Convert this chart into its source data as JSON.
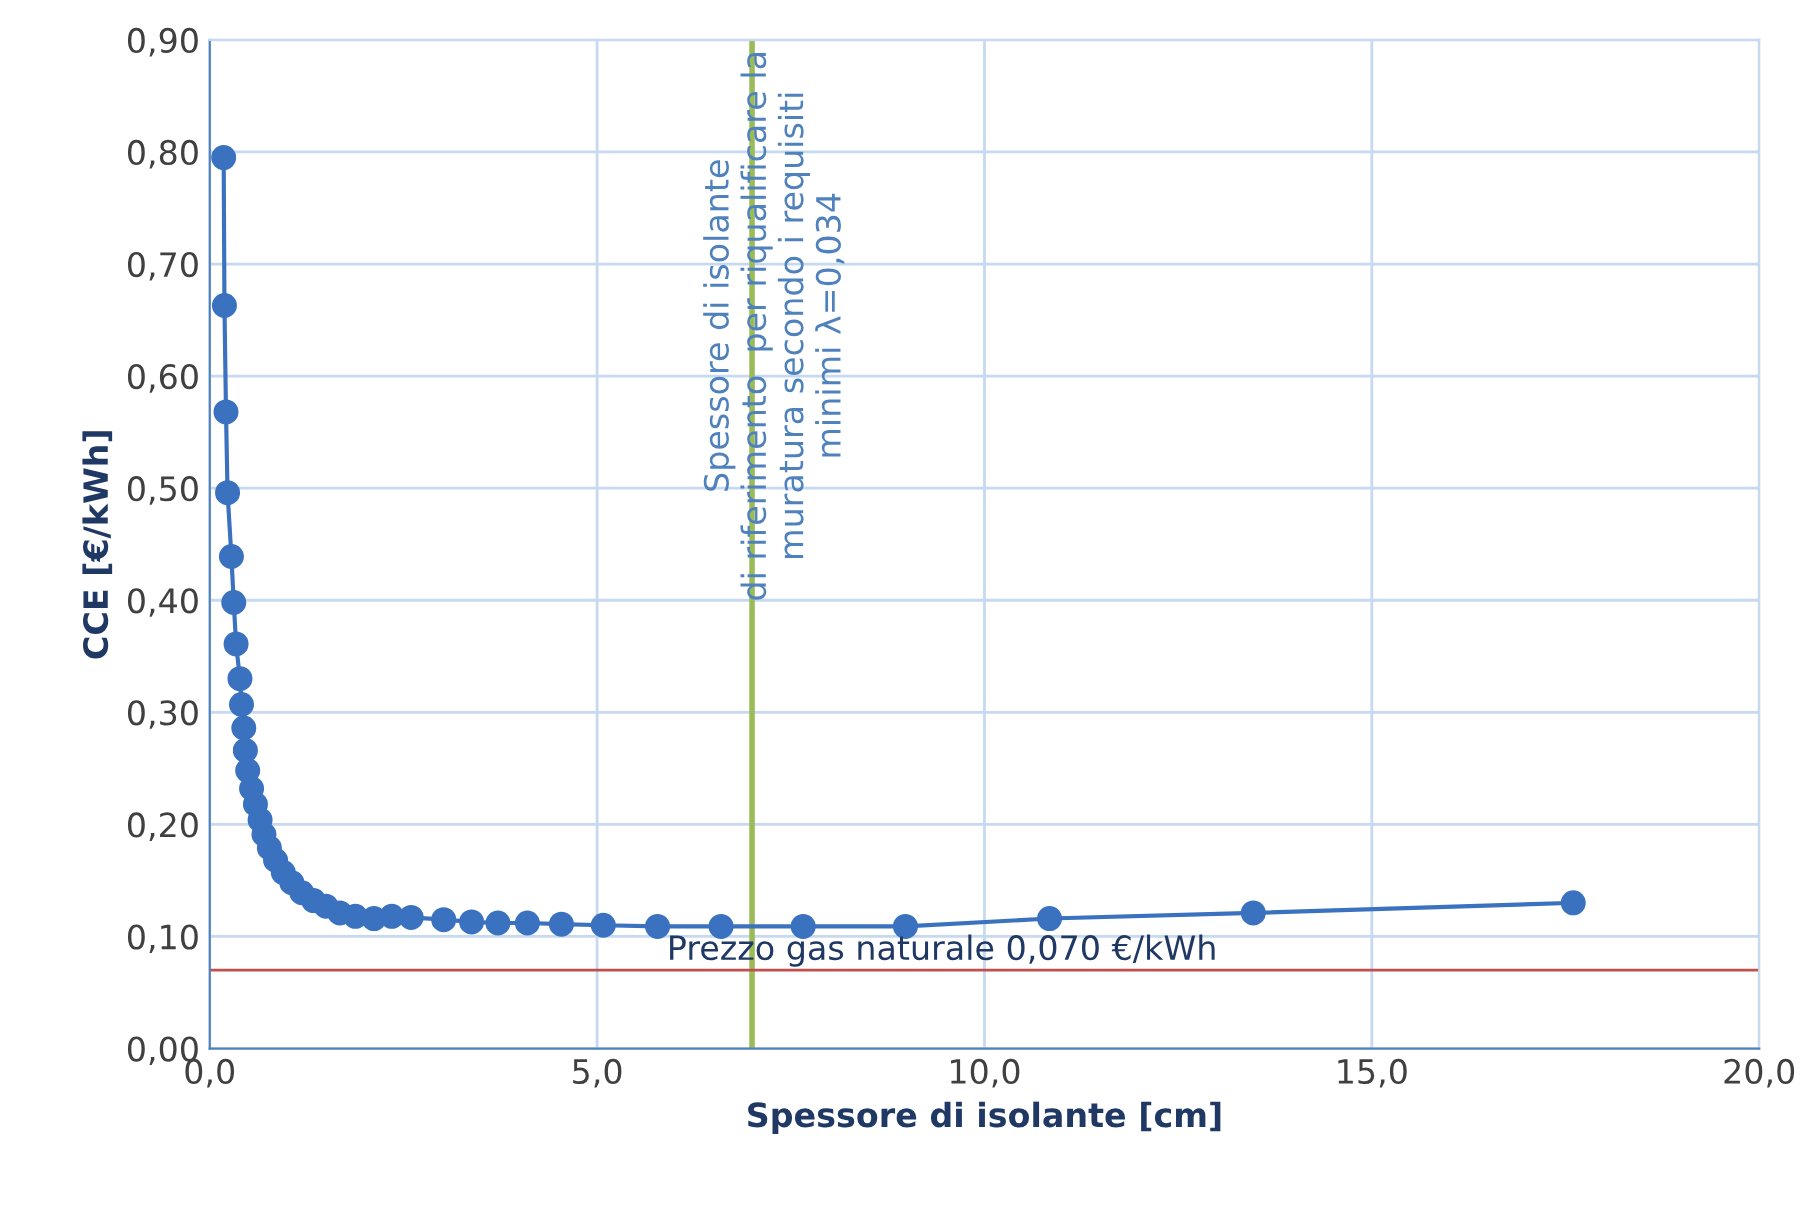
{
  "chart_data": {
    "type": "line",
    "xlabel": "Spessore di isolante [cm]",
    "ylabel": "CCE [€/kWh]",
    "xlim": [
      0,
      20
    ],
    "ylim": [
      0,
      0.9
    ],
    "xticks": [
      {
        "value": 0,
        "label": "0,0"
      },
      {
        "value": 5,
        "label": "5,0"
      },
      {
        "value": 10,
        "label": "10,0"
      },
      {
        "value": 15,
        "label": "15,0"
      },
      {
        "value": 20,
        "label": "20,0"
      }
    ],
    "yticks": [
      {
        "value": 0,
        "label": "0,00"
      },
      {
        "value": 0.1,
        "label": "0,10"
      },
      {
        "value": 0.2,
        "label": "0,20"
      },
      {
        "value": 0.3,
        "label": "0,30"
      },
      {
        "value": 0.4,
        "label": "0,40"
      },
      {
        "value": 0.5,
        "label": "0,50"
      },
      {
        "value": 0.6,
        "label": "0,60"
      },
      {
        "value": 0.7,
        "label": "0,70"
      },
      {
        "value": 0.8,
        "label": "0,80"
      },
      {
        "value": 0.9,
        "label": "0,90"
      }
    ],
    "grid": true,
    "marker": "circle",
    "line_style": "solid",
    "legend": false,
    "series": [
      {
        "color": "#3a72c0",
        "x": [
          0.18,
          0.19,
          0.21,
          0.23,
          0.28,
          0.31,
          0.34,
          0.39,
          0.41,
          0.44,
          0.46,
          0.49,
          0.54,
          0.59,
          0.65,
          0.7,
          0.77,
          0.85,
          0.95,
          1.06,
          1.19,
          1.34,
          1.5,
          1.68,
          1.88,
          2.12,
          2.35,
          2.6,
          3.02,
          3.38,
          3.72,
          4.1,
          4.54,
          5.08,
          5.78,
          6.6,
          7.66,
          8.98,
          10.84,
          13.47,
          17.6
        ],
        "values": [
          0.795,
          0.663,
          0.568,
          0.496,
          0.439,
          0.398,
          0.361,
          0.33,
          0.307,
          0.286,
          0.266,
          0.248,
          0.232,
          0.218,
          0.204,
          0.191,
          0.179,
          0.168,
          0.157,
          0.148,
          0.139,
          0.132,
          0.127,
          0.121,
          0.118,
          0.116,
          0.118,
          0.117,
          0.115,
          0.113,
          0.112,
          0.112,
          0.111,
          0.11,
          0.109,
          0.109,
          0.109,
          0.109,
          0.116,
          0.121,
          0.13
        ]
      }
    ],
    "annotations": [
      "Spessore di isolante\ndi riferimento  per riqualificare la\nmuratura secondo i requisiti\nminimi λ=0,034"
    ],
    "ref_lines": [
      {
        "axis": "x",
        "value": 7.0,
        "color": "#9bbb59",
        "line_style": "solid"
      },
      {
        "axis": "y",
        "value": 0.07,
        "color": "#c0504d",
        "line_style": "solid",
        "label": "Prezzo gas naturale 0,070 €/kWh"
      }
    ]
  }
}
